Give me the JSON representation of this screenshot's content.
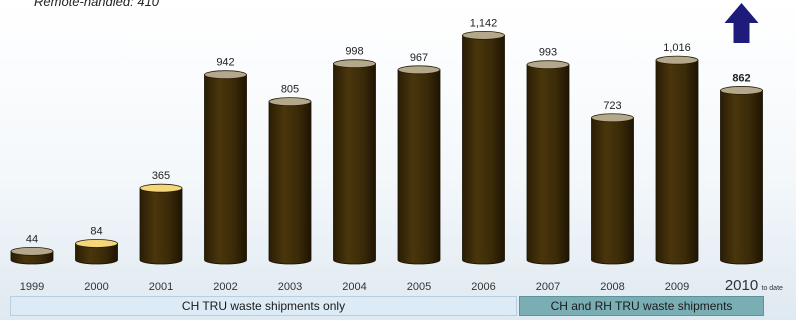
{
  "note": "Remote-handled:  410",
  "chart_data": {
    "type": "bar",
    "title": "",
    "xlabel": "",
    "ylabel": "",
    "categories": [
      "1999",
      "2000",
      "2001",
      "2002",
      "2003",
      "2004",
      "2005",
      "2006",
      "2007",
      "2008",
      "2009",
      "2010"
    ],
    "values": [
      44,
      84,
      365,
      942,
      805,
      998,
      967,
      1142,
      993,
      723,
      1016,
      862
    ],
    "value_labels": [
      "44",
      "84",
      "365",
      "942",
      "805",
      "998",
      "967",
      "1,142",
      "993",
      "723",
      "1,016",
      "862"
    ],
    "highlight_bar_labels": [
      "2000",
      "2001"
    ],
    "last_category_suffix": "to date",
    "ylim": [
      0,
      1200
    ],
    "grid": false,
    "trend_indicator": "up-arrow",
    "colors": {
      "bar_body": "#3a2a08",
      "bar_top": "#b3a88c",
      "bar_top_highlight": "#f4d77a",
      "arrow": "#1e1b7a"
    }
  },
  "bands": {
    "ch_only": "CH TRU waste shipments only",
    "ch_and_rh": "CH and RH TRU waste shipments"
  }
}
